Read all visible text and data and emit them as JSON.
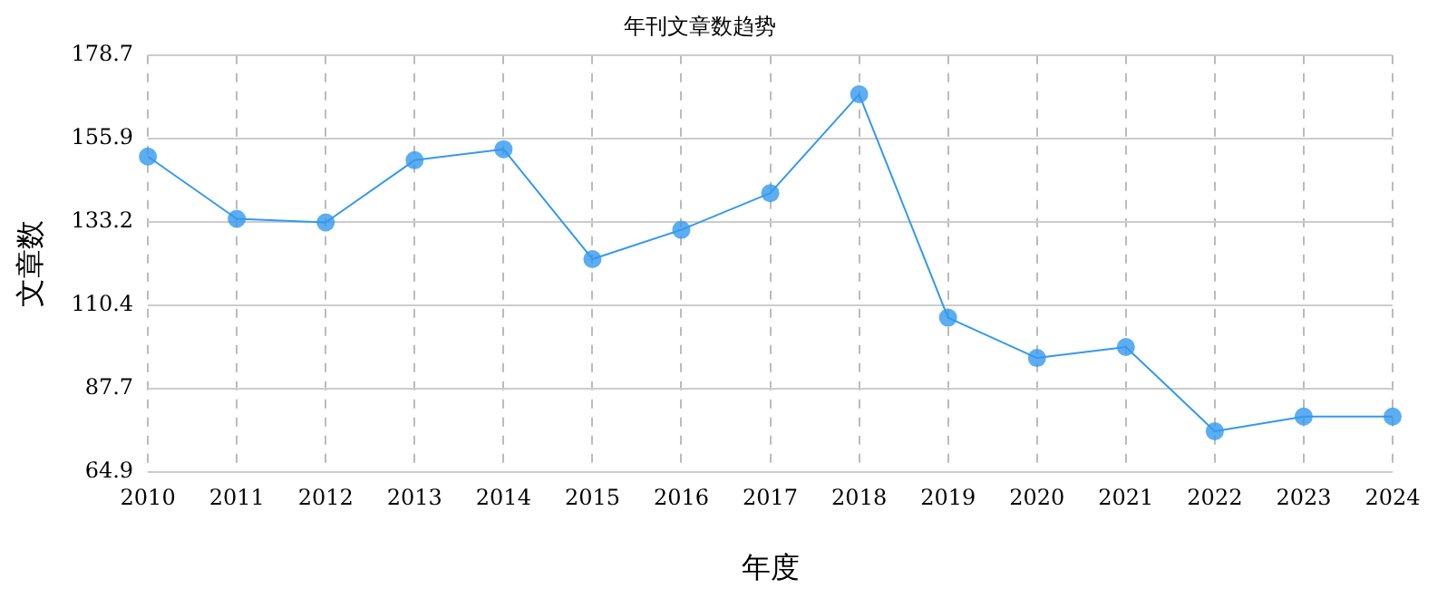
{
  "chart_data": {
    "type": "line",
    "title": "年刊文章数趋势",
    "xlabel": "年度",
    "ylabel": "文章数",
    "categories": [
      "2010",
      "2011",
      "2012",
      "2013",
      "2014",
      "2015",
      "2016",
      "2017",
      "2018",
      "2019",
      "2020",
      "2021",
      "2022",
      "2023",
      "2024"
    ],
    "series": [
      {
        "color": "#3399ee",
        "values": [
          151,
          134,
          133,
          150,
          153,
          123,
          131,
          141,
          168,
          107,
          96,
          99,
          76,
          80,
          80
        ]
      }
    ],
    "ylim": [
      64.9,
      178.7
    ],
    "yticks": [
      64.9,
      87.7,
      110.4,
      133.2,
      155.9,
      178.7
    ],
    "grid": true,
    "marker": "circle",
    "line_style": "solid"
  }
}
